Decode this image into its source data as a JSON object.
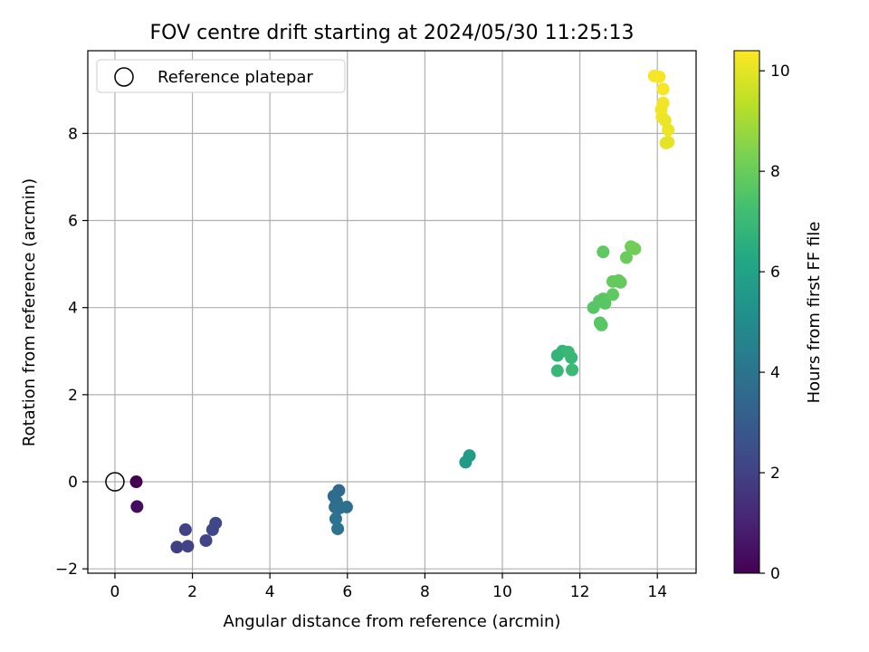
{
  "chart_data": {
    "type": "scatter",
    "title": "FOV centre drift starting at 2024/05/30 11:25:13",
    "xlabel": "Angular distance from reference (arcmin)",
    "ylabel": "Rotation from reference (arcmin)",
    "xlim": [
      -0.7,
      15.0
    ],
    "ylim": [
      -2.1,
      9.9
    ],
    "xticks": [
      0,
      2,
      4,
      6,
      8,
      10,
      12,
      14
    ],
    "yticks": [
      -2,
      0,
      2,
      4,
      6,
      8
    ],
    "grid": true,
    "legend": {
      "placement": "top-left",
      "entries": [
        "Reference platepar"
      ]
    },
    "reference": {
      "x": 0,
      "y": 0
    },
    "colorbar": {
      "label": "Hours from first FF file",
      "range": [
        0,
        10.4
      ],
      "ticks": [
        0,
        2,
        4,
        6,
        8,
        10
      ],
      "colormap": "viridis"
    },
    "points": [
      {
        "x": 0.55,
        "y": 0.0,
        "h": 0.0
      },
      {
        "x": 0.57,
        "y": -0.57,
        "h": 0.3
      },
      {
        "x": 1.6,
        "y": -1.5,
        "h": 1.9
      },
      {
        "x": 1.88,
        "y": -1.48,
        "h": 2.0
      },
      {
        "x": 1.82,
        "y": -1.1,
        "h": 2.0
      },
      {
        "x": 2.35,
        "y": -1.35,
        "h": 2.1
      },
      {
        "x": 2.52,
        "y": -1.1,
        "h": 2.2
      },
      {
        "x": 2.6,
        "y": -0.95,
        "h": 2.2
      },
      {
        "x": 5.65,
        "y": -0.33,
        "h": 3.6
      },
      {
        "x": 5.78,
        "y": -0.2,
        "h": 3.6
      },
      {
        "x": 5.72,
        "y": -0.45,
        "h": 3.7
      },
      {
        "x": 5.68,
        "y": -0.58,
        "h": 3.7
      },
      {
        "x": 5.98,
        "y": -0.58,
        "h": 3.8
      },
      {
        "x": 5.8,
        "y": -0.6,
        "h": 3.8
      },
      {
        "x": 5.7,
        "y": -0.85,
        "h": 3.9
      },
      {
        "x": 5.75,
        "y": -1.08,
        "h": 3.9
      },
      {
        "x": 9.05,
        "y": 0.45,
        "h": 5.6
      },
      {
        "x": 9.15,
        "y": 0.6,
        "h": 5.7
      },
      {
        "x": 11.42,
        "y": 2.9,
        "h": 6.8
      },
      {
        "x": 11.55,
        "y": 3.0,
        "h": 6.8
      },
      {
        "x": 11.7,
        "y": 2.98,
        "h": 6.9
      },
      {
        "x": 11.78,
        "y": 2.85,
        "h": 6.9
      },
      {
        "x": 11.42,
        "y": 2.55,
        "h": 6.9
      },
      {
        "x": 11.8,
        "y": 2.57,
        "h": 7.0
      },
      {
        "x": 12.35,
        "y": 4.0,
        "h": 7.6
      },
      {
        "x": 12.5,
        "y": 4.15,
        "h": 7.7
      },
      {
        "x": 12.6,
        "y": 4.2,
        "h": 7.7
      },
      {
        "x": 12.65,
        "y": 4.1,
        "h": 7.7
      },
      {
        "x": 12.52,
        "y": 3.65,
        "h": 7.6
      },
      {
        "x": 12.56,
        "y": 3.6,
        "h": 7.7
      },
      {
        "x": 12.85,
        "y": 4.3,
        "h": 7.8
      },
      {
        "x": 12.85,
        "y": 4.6,
        "h": 7.9
      },
      {
        "x": 13.0,
        "y": 4.62,
        "h": 7.9
      },
      {
        "x": 13.05,
        "y": 4.58,
        "h": 7.9
      },
      {
        "x": 12.6,
        "y": 5.28,
        "h": 7.8
      },
      {
        "x": 13.2,
        "y": 5.15,
        "h": 8.0
      },
      {
        "x": 13.32,
        "y": 5.4,
        "h": 8.1
      },
      {
        "x": 13.42,
        "y": 5.35,
        "h": 8.1
      },
      {
        "x": 13.92,
        "y": 9.32,
        "h": 10.3
      },
      {
        "x": 14.05,
        "y": 9.3,
        "h": 10.3
      },
      {
        "x": 14.15,
        "y": 9.02,
        "h": 10.3
      },
      {
        "x": 14.15,
        "y": 8.7,
        "h": 10.2
      },
      {
        "x": 14.1,
        "y": 8.55,
        "h": 10.2
      },
      {
        "x": 14.12,
        "y": 8.38,
        "h": 10.2
      },
      {
        "x": 14.2,
        "y": 8.3,
        "h": 10.1
      },
      {
        "x": 14.28,
        "y": 8.08,
        "h": 10.1
      },
      {
        "x": 14.22,
        "y": 7.78,
        "h": 10.0
      },
      {
        "x": 14.28,
        "y": 7.8,
        "h": 10.0
      }
    ]
  }
}
